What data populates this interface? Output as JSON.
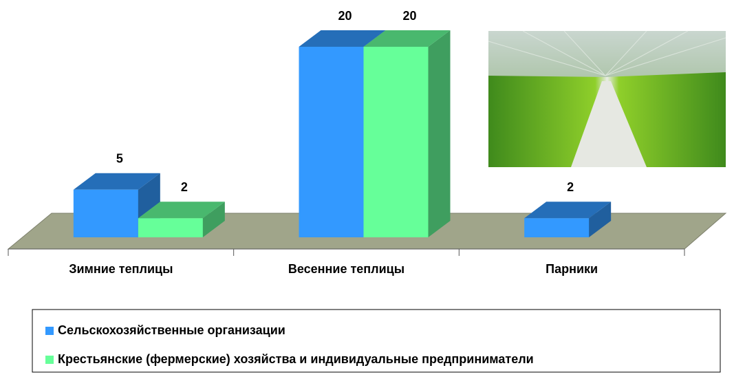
{
  "chart_data": {
    "type": "bar3d",
    "categories": [
      "Зимние теплицы",
      "Весенние теплицы",
      "Парники"
    ],
    "series": [
      {
        "name": "Сельскохозяйственные организации",
        "color": "#3399ff",
        "values": [
          5,
          20,
          2
        ]
      },
      {
        "name": "Крестьянские (фермерские) хозяйства и индивидуальные предприниматели",
        "color": "#66ff99",
        "values": [
          2,
          20,
          null
        ]
      }
    ],
    "legend": "bottom"
  }
}
